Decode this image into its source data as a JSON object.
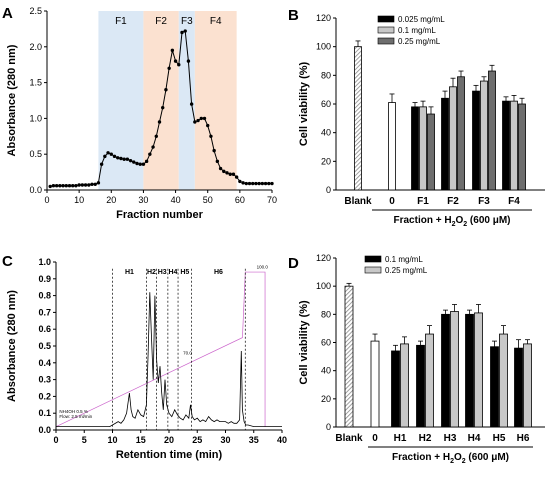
{
  "colors": {
    "fraction_shade_blue": "#dbe8f5",
    "fraction_shade_orange": "#fbe1d0",
    "bar_black": "#000000",
    "bar_light_gray": "#c8c8c8",
    "bar_dark_gray": "#6e6e6e",
    "bar_white": "#ffffff",
    "blank_hatch": "#888888",
    "hplc_method_line": "#cc66cc"
  },
  "chart_data": [
    {
      "panel": "A",
      "type": "line",
      "xlabel": "Fraction number",
      "ylabel": "Absorbance (280 nm)",
      "xlim": [
        0,
        70
      ],
      "ylim": [
        0,
        2.5
      ],
      "xticks": [
        "0",
        "10",
        "20",
        "30",
        "40",
        "50",
        "60",
        "70"
      ],
      "yticks": [
        "0.0",
        "0.5",
        "1.0",
        "1.5",
        "2.0",
        "2.5"
      ],
      "regions": [
        {
          "label": "F1",
          "x_start": 16,
          "x_end": 30,
          "color": "blue"
        },
        {
          "label": "F2",
          "x_start": 30,
          "x_end": 41,
          "color": "orange"
        },
        {
          "label": "F3",
          "x_start": 41,
          "x_end": 46,
          "color": "blue"
        },
        {
          "label": "F4",
          "x_start": 46,
          "x_end": 59,
          "color": "orange"
        }
      ],
      "x": [
        1,
        2,
        3,
        4,
        5,
        6,
        7,
        8,
        9,
        10,
        11,
        12,
        13,
        14,
        15,
        16,
        17,
        18,
        19,
        20,
        21,
        22,
        23,
        24,
        25,
        26,
        27,
        28,
        29,
        30,
        31,
        32,
        33,
        34,
        35,
        36,
        37,
        38,
        39,
        40,
        41,
        42,
        43,
        44,
        45,
        46,
        47,
        48,
        49,
        50,
        51,
        52,
        53,
        54,
        55,
        56,
        57,
        58,
        59,
        60,
        61,
        62,
        63,
        64,
        65,
        66,
        67,
        68,
        69,
        70
      ],
      "y": [
        0.05,
        0.06,
        0.06,
        0.06,
        0.06,
        0.06,
        0.06,
        0.06,
        0.06,
        0.07,
        0.07,
        0.07,
        0.07,
        0.08,
        0.08,
        0.1,
        0.36,
        0.47,
        0.52,
        0.5,
        0.47,
        0.45,
        0.44,
        0.43,
        0.43,
        0.41,
        0.39,
        0.37,
        0.36,
        0.36,
        0.4,
        0.5,
        0.6,
        0.75,
        0.95,
        1.15,
        1.4,
        1.7,
        1.95,
        1.8,
        1.75,
        2.2,
        2.22,
        1.8,
        1.2,
        0.95,
        0.97,
        1.0,
        1.0,
        0.9,
        0.75,
        0.55,
        0.4,
        0.3,
        0.26,
        0.24,
        0.22,
        0.22,
        0.18,
        0.12,
        0.1,
        0.09,
        0.09,
        0.09,
        0.09,
        0.09,
        0.09,
        0.09,
        0.09,
        0.09
      ]
    },
    {
      "panel": "B",
      "type": "bar",
      "ylabel": "Cell viability (%)",
      "xlabel": "Fraction + H2O2 (600 μM)",
      "xlabel_parts": {
        "pre": "Fraction + H",
        "sub1": "2",
        "mid": "O",
        "sub2": "2",
        "post": " (600 μM)"
      },
      "ylim": [
        0,
        120
      ],
      "yticks": [
        "0",
        "20",
        "40",
        "60",
        "80",
        "100",
        "120"
      ],
      "categories": [
        "Blank",
        "0",
        "F1",
        "F2",
        "F3",
        "F4"
      ],
      "legend": {
        "position": "top-right",
        "entries": [
          "0.025 mg/mL",
          "0.1 mg/mL",
          "0.25 mg/mL"
        ]
      },
      "bars": [
        {
          "category": "Blank",
          "style": "hatch",
          "value": 100,
          "error": 4
        },
        {
          "category": "0",
          "style": "white",
          "value": 61,
          "error": 6
        },
        {
          "category": "F1",
          "series": "0.025 mg/mL",
          "style": "black",
          "value": 58,
          "error": 3
        },
        {
          "category": "F1",
          "series": "0.1 mg/mL",
          "style": "light",
          "value": 58,
          "error": 4
        },
        {
          "category": "F1",
          "series": "0.25 mg/mL",
          "style": "dark",
          "value": 53,
          "error": 5
        },
        {
          "category": "F2",
          "series": "0.025 mg/mL",
          "style": "black",
          "value": 64,
          "error": 5
        },
        {
          "category": "F2",
          "series": "0.1 mg/mL",
          "style": "light",
          "value": 72,
          "error": 6
        },
        {
          "category": "F2",
          "series": "0.25 mg/mL",
          "style": "dark",
          "value": 79,
          "error": 4
        },
        {
          "category": "F3",
          "series": "0.025 mg/mL",
          "style": "black",
          "value": 69,
          "error": 4
        },
        {
          "category": "F3",
          "series": "0.1 mg/mL",
          "style": "light",
          "value": 76,
          "error": 3
        },
        {
          "category": "F3",
          "series": "0.25 mg/mL",
          "style": "dark",
          "value": 83,
          "error": 4
        },
        {
          "category": "F4",
          "series": "0.025 mg/mL",
          "style": "black",
          "value": 62,
          "error": 3
        },
        {
          "category": "F4",
          "series": "0.1 mg/mL",
          "style": "light",
          "value": 62,
          "error": 4
        },
        {
          "category": "F4",
          "series": "0.25 mg/mL",
          "style": "dark",
          "value": 60,
          "error": 4
        }
      ]
    },
    {
      "panel": "C",
      "type": "line",
      "xlabel": "Retention time (min)",
      "ylabel": "Absorbance (280 nm)",
      "xlim": [
        0,
        40
      ],
      "ylim": [
        0,
        1.0
      ],
      "xticks": [
        "0",
        "5",
        "10",
        "15",
        "20",
        "25",
        "30",
        "35",
        "40"
      ],
      "yticks": [
        "0.0",
        "0.1",
        "0.2",
        "0.3",
        "0.4",
        "0.5",
        "0.6",
        "0.7",
        "0.8",
        "0.9",
        "1.0"
      ],
      "peak_windows": [
        {
          "label": "H1",
          "x_start": 10,
          "x_end": 16
        },
        {
          "label": "H2",
          "x_start": 16,
          "x_end": 17.8
        },
        {
          "label": "H3",
          "x_start": 17.8,
          "x_end": 19.8
        },
        {
          "label": "H4",
          "x_start": 19.8,
          "x_end": 21.6
        },
        {
          "label": "H5",
          "x_start": 21.6,
          "x_end": 24
        },
        {
          "label": "H6",
          "x_start": 24,
          "x_end": 33.5
        }
      ],
      "annotations": [
        "NH4OH 0.5 %",
        "Flow: 2.5 ml/min",
        "70.0",
        "100.0"
      ],
      "x": [
        0,
        2,
        4,
        6,
        8,
        9.5,
        10,
        11,
        11.5,
        12,
        12.5,
        13,
        13.3,
        13.6,
        14,
        14.5,
        15,
        15.5,
        16,
        16.3,
        16.6,
        16.9,
        17.2,
        17.5,
        17.8,
        18.1,
        18.4,
        18.7,
        19,
        19.3,
        19.6,
        20,
        20.5,
        21,
        21.5,
        22,
        22.5,
        23,
        23.5,
        23.8,
        24.1,
        24.5,
        25,
        25.5,
        26,
        26.5,
        27,
        27.5,
        28,
        28.5,
        29,
        29.5,
        30,
        30.5,
        31,
        31.5,
        32,
        32.5,
        32.8,
        33,
        33.3,
        33.6,
        34,
        35,
        36,
        37,
        38,
        40
      ],
      "y": [
        0.02,
        0.02,
        0.02,
        0.02,
        0.02,
        0.02,
        0.03,
        0.05,
        0.04,
        0.06,
        0.1,
        0.22,
        0.12,
        0.08,
        0.07,
        0.12,
        0.09,
        0.08,
        0.15,
        0.45,
        0.82,
        0.55,
        0.3,
        0.8,
        0.42,
        0.28,
        0.38,
        0.22,
        0.12,
        0.3,
        0.15,
        0.1,
        0.08,
        0.12,
        0.09,
        0.07,
        0.06,
        0.09,
        0.07,
        0.15,
        0.08,
        0.06,
        0.07,
        0.05,
        0.06,
        0.05,
        0.08,
        0.06,
        0.05,
        0.06,
        0.05,
        0.05,
        0.05,
        0.04,
        0.05,
        0.04,
        0.04,
        0.06,
        0.47,
        0.12,
        0.05,
        0.03,
        0.03,
        0.02,
        0.02,
        0.02,
        0.02,
        0.02
      ]
    },
    {
      "panel": "D",
      "type": "bar",
      "ylabel": "Cell viability (%)",
      "xlabel": "Fraction + H2O2 (600 μM)",
      "xlabel_parts": {
        "pre": "Fraction + H",
        "sub1": "2",
        "mid": "O",
        "sub2": "2",
        "post": " (600 μM)"
      },
      "ylim": [
        0,
        120
      ],
      "yticks": [
        "0",
        "20",
        "40",
        "60",
        "80",
        "100",
        "120"
      ],
      "categories": [
        "Blank",
        "0",
        "H1",
        "H2",
        "H3",
        "H4",
        "H5",
        "H6"
      ],
      "legend": {
        "position": "top-left",
        "entries": [
          "0.1 mg/mL",
          "0.25 mg/mL"
        ]
      },
      "bars": [
        {
          "category": "Blank",
          "style": "hatch",
          "value": 100,
          "error": 2
        },
        {
          "category": "0",
          "style": "white",
          "value": 61,
          "error": 5
        },
        {
          "category": "H1",
          "series": "0.1 mg/mL",
          "style": "black",
          "value": 54,
          "error": 4
        },
        {
          "category": "H1",
          "series": "0.25 mg/mL",
          "style": "light",
          "value": 59,
          "error": 5
        },
        {
          "category": "H2",
          "series": "0.1 mg/mL",
          "style": "black",
          "value": 58,
          "error": 3
        },
        {
          "category": "H2",
          "series": "0.25 mg/mL",
          "style": "light",
          "value": 66,
          "error": 6
        },
        {
          "category": "H3",
          "series": "0.1 mg/mL",
          "style": "black",
          "value": 80,
          "error": 3
        },
        {
          "category": "H3",
          "series": "0.25 mg/mL",
          "style": "light",
          "value": 82,
          "error": 5
        },
        {
          "category": "H4",
          "series": "0.1 mg/mL",
          "style": "black",
          "value": 80,
          "error": 3
        },
        {
          "category": "H4",
          "series": "0.25 mg/mL",
          "style": "light",
          "value": 81,
          "error": 6
        },
        {
          "category": "H5",
          "series": "0.1 mg/mL",
          "style": "black",
          "value": 57,
          "error": 4
        },
        {
          "category": "H5",
          "series": "0.25 mg/mL",
          "style": "light",
          "value": 66,
          "error": 6
        },
        {
          "category": "H6",
          "series": "0.1 mg/mL",
          "style": "black",
          "value": 56,
          "error": 6
        },
        {
          "category": "H6",
          "series": "0.25 mg/mL",
          "style": "light",
          "value": 59,
          "error": 3
        }
      ]
    }
  ],
  "panel_labels": [
    "A",
    "B",
    "C",
    "D"
  ]
}
